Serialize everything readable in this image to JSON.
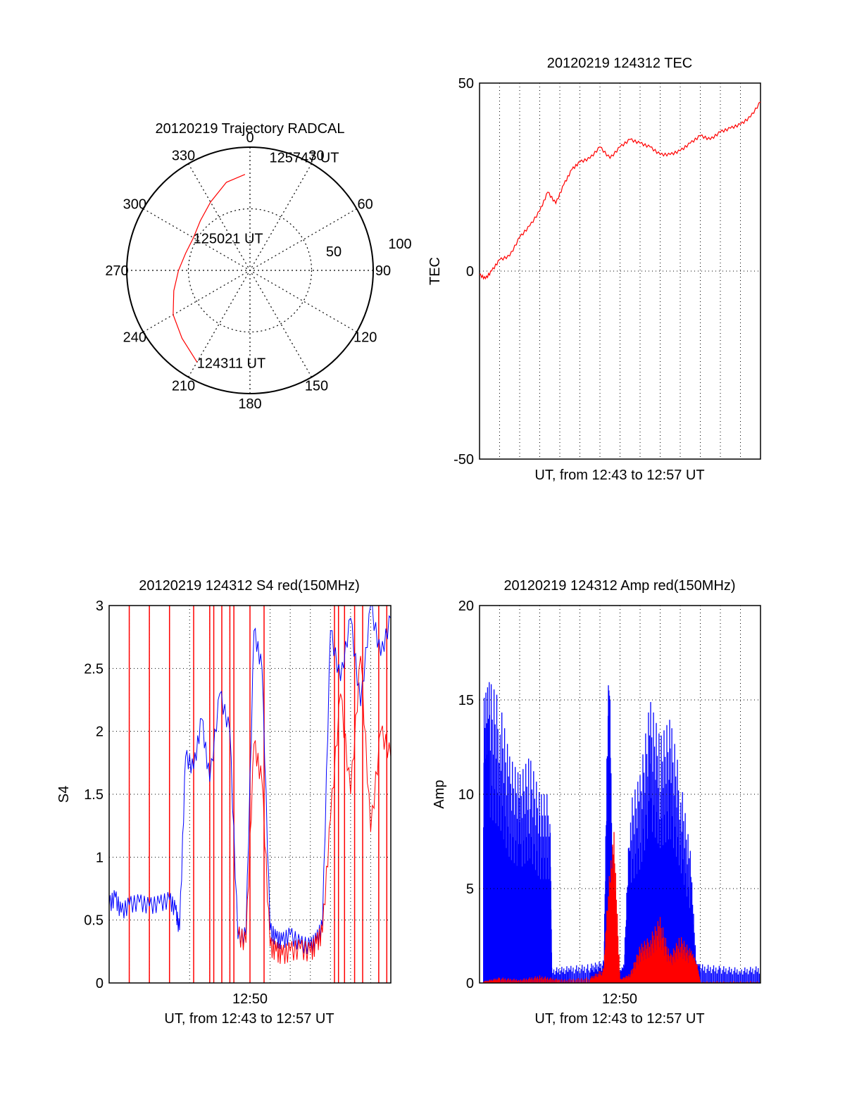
{
  "chart_data": [
    {
      "panel": "trajectory",
      "type": "scatter",
      "title": "20120219 Trajectory RADCAL",
      "azimuth_ticks": [
        "0",
        "30",
        "60",
        "90",
        "120",
        "150",
        "180",
        "210",
        "240",
        "270",
        "300",
        "330"
      ],
      "radius_ticks": [
        "50",
        "100"
      ],
      "rlim": [
        0,
        100
      ],
      "track_color": "#ff0000",
      "track": [
        {
          "az": 210,
          "r": 86
        },
        {
          "az": 225,
          "r": 78
        },
        {
          "az": 240,
          "r": 72
        },
        {
          "az": 255,
          "r": 64
        },
        {
          "az": 270,
          "r": 58
        },
        {
          "az": 285,
          "r": 54
        },
        {
          "az": 300,
          "r": 53
        },
        {
          "az": 315,
          "r": 57
        },
        {
          "az": 330,
          "r": 64
        },
        {
          "az": 345,
          "r": 74
        },
        {
          "az": 357,
          "r": 78
        }
      ],
      "time_labels": [
        {
          "text": "124311 UT",
          "az": 210,
          "r": 86
        },
        {
          "text": "125021 UT",
          "az": 300,
          "r": 53
        },
        {
          "text": "125747 UT",
          "az": 2,
          "r": 90
        }
      ]
    },
    {
      "panel": "tec",
      "type": "line",
      "title": "20120219 124312 TEC",
      "ylabel": "TEC",
      "xlabel": "UT, from 12:43 to 12:57 UT",
      "ylim": [
        -50,
        50
      ],
      "yticks": [
        "50",
        "0",
        "-50"
      ],
      "xlim": [
        0,
        14
      ],
      "grid": true,
      "series": [
        {
          "color": "#ff0000",
          "x": [
            0,
            0.3,
            0.6,
            1.0,
            1.5,
            2.0,
            2.5,
            3.0,
            3.4,
            3.8,
            4.2,
            4.6,
            5.0,
            5.5,
            6.0,
            6.5,
            7.0,
            7.5,
            8.0,
            8.5,
            9.0,
            9.5,
            10.0,
            10.5,
            11.0,
            11.5,
            12.0,
            12.5,
            13.0,
            13.5,
            14.0
          ],
          "y": [
            -1,
            -2,
            0,
            3,
            4,
            9,
            12,
            16,
            21,
            18,
            23,
            27,
            29,
            30,
            33,
            30,
            33,
            35,
            34,
            33,
            31,
            31,
            32,
            34,
            36,
            35,
            37,
            38,
            39,
            41,
            45
          ]
        }
      ]
    },
    {
      "panel": "s4",
      "type": "line",
      "title": "20120219 124312 S4 red(150MHz)",
      "ylabel": "S4",
      "xlabel": "UT, from 12:43 to 12:57 UT",
      "x_tick_label": "12:50",
      "ylim": [
        0,
        3
      ],
      "yticks": [
        "0",
        "0.5",
        "1",
        "1.5",
        "2",
        "2.5",
        "3"
      ],
      "xlim": [
        0,
        14
      ],
      "grid": true,
      "series": [
        {
          "color": "#0000ff",
          "x": [
            0,
            0.3,
            0.6,
            1.0,
            1.5,
            2.0,
            2.5,
            3.0,
            3.3,
            3.5,
            3.8,
            4.2,
            4.6,
            5.0,
            5.5,
            6.0,
            6.4,
            6.8,
            7.2,
            7.6,
            8.0,
            8.3,
            8.6,
            9.0,
            9.5,
            10.0,
            10.3,
            10.6,
            11.0,
            11.5,
            12.0,
            12.5,
            13.0,
            13.5,
            14.0
          ],
          "y": [
            0.62,
            0.68,
            0.56,
            0.62,
            0.64,
            0.61,
            0.63,
            0.66,
            0.58,
            0.42,
            1.8,
            1.7,
            2.1,
            1.6,
            2.3,
            2.0,
            0.35,
            0.38,
            2.8,
            2.5,
            0.42,
            0.35,
            0.33,
            0.38,
            0.31,
            0.29,
            0.34,
            0.45,
            2.8,
            2.4,
            2.9,
            2.2,
            3.0,
            2.6,
            2.9
          ]
        },
        {
          "color": "#ff0000",
          "x": [
            6.4,
            6.8,
            7.2,
            7.6,
            8.0,
            8.3,
            8.6,
            9.0,
            9.5,
            10.0,
            10.3,
            10.6,
            11.0,
            11.5,
            12.0,
            12.5,
            13.0,
            13.5,
            14.0
          ],
          "y": [
            0.38,
            0.32,
            1.9,
            1.6,
            0.29,
            0.25,
            0.22,
            0.25,
            0.27,
            0.24,
            0.31,
            0.4,
            1.3,
            2.3,
            1.5,
            2.6,
            1.2,
            2.0,
            1.8
          ]
        }
      ],
      "red_spikes_x": [
        1.0,
        2.0,
        3.0,
        4.2,
        5.0,
        5.2,
        5.6,
        6.0,
        6.2,
        7.0,
        7.7,
        11.2,
        11.4,
        11.7,
        12.2,
        12.6,
        13.4,
        13.8
      ]
    },
    {
      "panel": "amp",
      "type": "area",
      "title": "20120219 124312 Amp red(150MHz)",
      "ylabel": "Amp",
      "xlabel": "UT, from 12:43 to 12:57 UT",
      "x_tick_label": "12:50",
      "ylim": [
        0,
        20
      ],
      "yticks": [
        "0",
        "5",
        "10",
        "15",
        "20"
      ],
      "xlim": [
        0,
        14
      ],
      "grid": true,
      "series": [
        {
          "color": "#0000ff",
          "x": [
            0.2,
            0.5,
            1.0,
            1.5,
            2.0,
            2.5,
            3.0,
            3.5,
            3.6,
            4.5,
            5.5,
            6.2,
            6.4,
            6.5,
            6.7,
            6.9,
            7.2,
            7.5,
            8.0,
            8.5,
            9.0,
            9.5,
            10.0,
            10.5,
            10.8,
            11.0,
            12.0,
            13.0,
            14.0
          ],
          "y": [
            15,
            16,
            15,
            12,
            11,
            12,
            10,
            10,
            0.8,
            0.9,
            1.0,
            1.2,
            16,
            15,
            1.0,
            0.5,
            1.0,
            9.5,
            11,
            15,
            13,
            14,
            11,
            7,
            1.0,
            1.0,
            0.9,
            0.8,
            0.9
          ]
        },
        {
          "color": "#ff0000",
          "x": [
            0.2,
            1.0,
            2.0,
            3.0,
            4.0,
            5.5,
            6.2,
            6.4,
            6.7,
            7.0,
            7.5,
            8.0,
            8.5,
            9.0,
            9.5,
            10.0,
            10.5,
            10.8,
            11.0,
            14.0
          ],
          "y": [
            0.1,
            0.3,
            0.2,
            0.4,
            0.2,
            0.3,
            0.8,
            5.0,
            8.0,
            0.2,
            0.5,
            2.0,
            2.5,
            3.5,
            1.5,
            2.5,
            1.8,
            1.2,
            0.1,
            0.1
          ]
        }
      ]
    }
  ]
}
